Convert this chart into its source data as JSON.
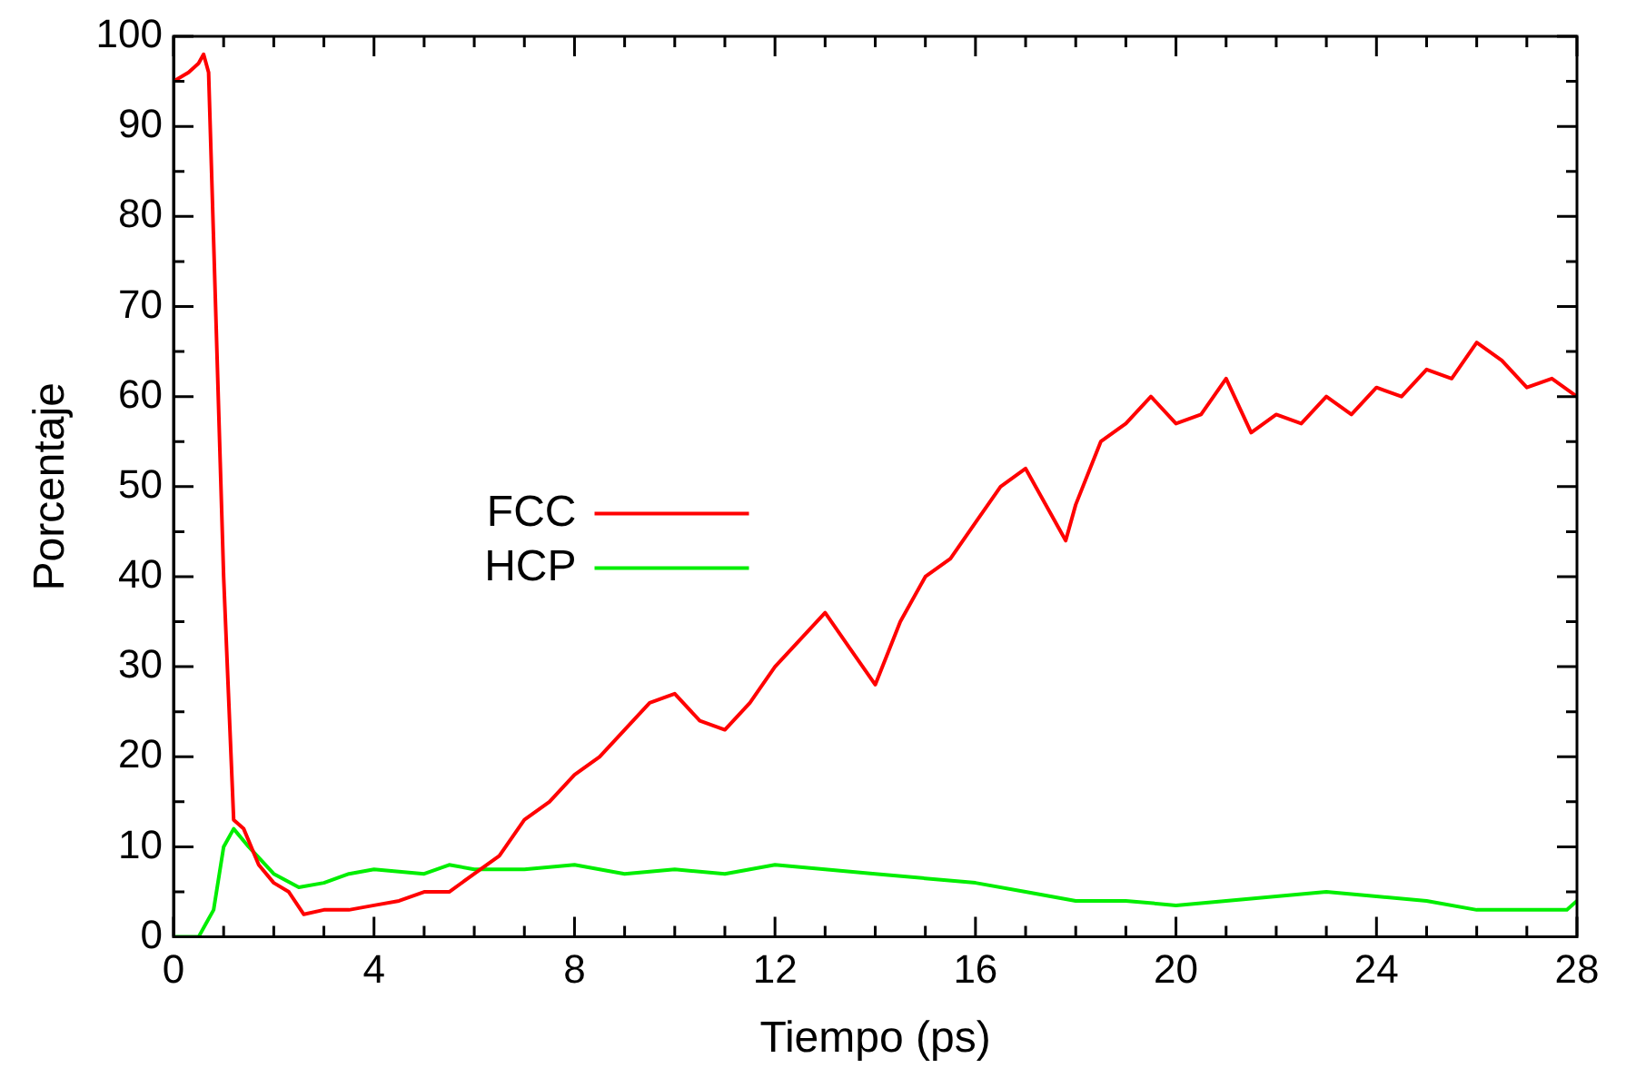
{
  "chart_data": {
    "type": "line",
    "xlabel": "Tiempo (ps)",
    "ylabel": "Porcentaje",
    "xlim": [
      0,
      28
    ],
    "ylim": [
      0,
      100
    ],
    "xticks": [
      0,
      {
        "value": 1,
        "label": null
      },
      {
        "value": 2,
        "label": null
      },
      {
        "value": 3,
        "label": null
      },
      4,
      {
        "value": 5,
        "label": null
      },
      {
        "value": 6,
        "label": null
      },
      {
        "value": 7,
        "label": null
      },
      8,
      {
        "value": 9,
        "label": null
      },
      {
        "value": 10,
        "label": null
      },
      {
        "value": 11,
        "label": null
      },
      12,
      {
        "value": 13,
        "label": null
      },
      {
        "value": 14,
        "label": null
      },
      {
        "value": 15,
        "label": null
      },
      16,
      {
        "value": 17,
        "label": null
      },
      {
        "value": 18,
        "label": null
      },
      {
        "value": 19,
        "label": null
      },
      20,
      {
        "value": 21,
        "label": null
      },
      {
        "value": 22,
        "label": null
      },
      {
        "value": 23,
        "label": null
      },
      24,
      {
        "value": 25,
        "label": null
      },
      {
        "value": 26,
        "label": null
      },
      {
        "value": 27,
        "label": null
      },
      28
    ],
    "yticks": [
      0,
      {
        "value": 5,
        "label": null
      },
      10,
      {
        "value": 15,
        "label": null
      },
      20,
      {
        "value": 25,
        "label": null
      },
      30,
      {
        "value": 35,
        "label": null
      },
      40,
      {
        "value": 45,
        "label": null
      },
      50,
      {
        "value": 55,
        "label": null
      },
      60,
      {
        "value": 65,
        "label": null
      },
      70,
      {
        "value": 75,
        "label": null
      },
      80,
      {
        "value": 85,
        "label": null
      },
      90,
      {
        "value": 95,
        "label": null
      },
      100
    ],
    "grid": false,
    "legend": "center left",
    "marker": "none",
    "line_style": "solid",
    "series": [
      {
        "name": "FCC",
        "color": "#ff0000",
        "x": [
          0,
          0.3,
          0.5,
          0.6,
          0.7,
          1.0,
          1.2,
          1.4,
          1.7,
          2.0,
          2.3,
          2.6,
          3,
          3.5,
          4,
          4.5,
          5,
          5.5,
          6,
          6.5,
          7,
          7.5,
          8,
          8.5,
          9,
          9.5,
          10,
          10.5,
          11,
          11.5,
          12,
          12.5,
          13,
          13.5,
          14,
          14.5,
          15,
          15.5,
          16,
          16.5,
          17,
          17.5,
          17.8,
          18,
          18.5,
          19,
          19.5,
          20,
          20.5,
          21,
          21.5,
          22,
          22.5,
          23,
          23.5,
          24,
          24.5,
          25,
          25.5,
          26,
          26.5,
          27,
          27.5,
          28
        ],
        "values": [
          95,
          96,
          97,
          98,
          96,
          40,
          13,
          12,
          8,
          6,
          5,
          2.5,
          3,
          3,
          3.5,
          4,
          5,
          5,
          7,
          9,
          13,
          15,
          18,
          20,
          23,
          26,
          27,
          24,
          23,
          26,
          30,
          33,
          36,
          32,
          28,
          35,
          40,
          42,
          46,
          50,
          52,
          47,
          44,
          48,
          55,
          57,
          60,
          57,
          58,
          62,
          56,
          58,
          57,
          60,
          58,
          61,
          60,
          63,
          62,
          66,
          64,
          61,
          62,
          60
        ]
      },
      {
        "name": "HCP",
        "color": "#00ee00",
        "x": [
          0,
          0.5,
          0.8,
          1.0,
          1.2,
          1.5,
          2,
          2.5,
          3,
          3.5,
          4,
          5,
          5.5,
          6,
          7,
          8,
          9,
          10,
          11,
          12,
          13,
          14,
          15,
          16,
          17,
          18,
          19,
          20,
          21,
          22,
          23,
          24,
          25,
          26,
          27,
          27.8,
          28
        ],
        "values": [
          0,
          0,
          3,
          10,
          12,
          10,
          7,
          5.5,
          6,
          7,
          7.5,
          7,
          8,
          7.5,
          7.5,
          8,
          7,
          7.5,
          7,
          8,
          7.5,
          7,
          6.5,
          6,
          5,
          4,
          4,
          3.5,
          4,
          4.5,
          5,
          4.5,
          4,
          3,
          3,
          3,
          4
        ]
      }
    ]
  }
}
